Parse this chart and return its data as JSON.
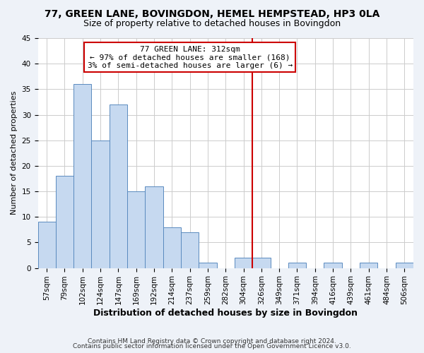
{
  "title": "77, GREEN LANE, BOVINGDON, HEMEL HEMPSTEAD, HP3 0LA",
  "subtitle": "Size of property relative to detached houses in Bovingdon",
  "xlabel": "Distribution of detached houses by size in Bovingdon",
  "ylabel": "Number of detached properties",
  "footer_line1": "Contains HM Land Registry data © Crown copyright and database right 2024.",
  "footer_line2": "Contains public sector information licensed under the Open Government Licence v3.0.",
  "bin_labels": [
    "57sqm",
    "79sqm",
    "102sqm",
    "124sqm",
    "147sqm",
    "169sqm",
    "192sqm",
    "214sqm",
    "237sqm",
    "259sqm",
    "282sqm",
    "304sqm",
    "326sqm",
    "349sqm",
    "371sqm",
    "394sqm",
    "416sqm",
    "439sqm",
    "461sqm",
    "484sqm",
    "506sqm"
  ],
  "bar_values": [
    9,
    18,
    36,
    25,
    32,
    15,
    16,
    8,
    7,
    1,
    0,
    2,
    2,
    0,
    1,
    0,
    1,
    0,
    1,
    0,
    1
  ],
  "bar_color": "#c6d9f0",
  "bar_edge_color": "#5a8abf",
  "reference_line_x_label": "304sqm",
  "reference_line_color": "#cc0000",
  "annotation_title": "77 GREEN LANE: 312sqm",
  "annotation_line1": "← 97% of detached houses are smaller (168)",
  "annotation_line2": "3% of semi-detached houses are larger (6) →",
  "annotation_box_facecolor": "#ffffff",
  "annotation_box_edgecolor": "#cc0000",
  "ylim": [
    0,
    45
  ],
  "yticks": [
    0,
    5,
    10,
    15,
    20,
    25,
    30,
    35,
    40,
    45
  ],
  "background_color": "#eef2f8",
  "plot_background_color": "#ffffff",
  "grid_color": "#cccccc",
  "title_fontsize": 10,
  "subtitle_fontsize": 9,
  "xlabel_fontsize": 9,
  "ylabel_fontsize": 8,
  "tick_fontsize": 7.5,
  "annotation_fontsize": 8,
  "footer_fontsize": 6.5
}
